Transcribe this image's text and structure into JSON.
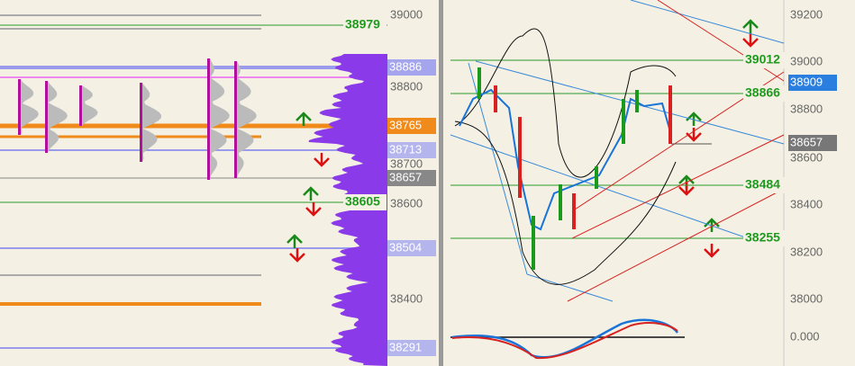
{
  "left_panel": {
    "axis_ticks": [
      "39000",
      "38800",
      "38700",
      "38600",
      "38400"
    ],
    "badges": [
      "38886",
      "38765",
      "38713",
      "38657",
      "38504",
      "38291"
    ],
    "level_labels": [
      "38979",
      "38605"
    ]
  },
  "right_panel": {
    "axis_ticks": [
      "39200",
      "39000",
      "38800",
      "38600",
      "38400",
      "38200",
      "38000"
    ],
    "badges": [
      "38909",
      "38657"
    ],
    "level_labels": [
      "39012",
      "38866",
      "38484",
      "38255"
    ],
    "indicator_tick": "0.000"
  }
}
